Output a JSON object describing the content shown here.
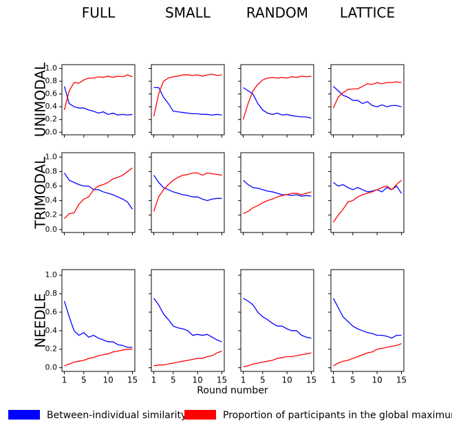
{
  "column_titles": [
    "FULL",
    "SMALL",
    "RANDOM",
    "LATTICE"
  ],
  "row_titles": [
    "UNIMODAL",
    "TRIMODAL",
    "NEEDLE"
  ],
  "xlabel": "Round number",
  "legend": [
    {
      "name": "Between-individual similarity",
      "color": "#0000ff"
    },
    {
      "name": "Proportion of participants in the global maximum",
      "color": "#ff0000"
    }
  ],
  "axes": {
    "x": [
      1,
      2,
      3,
      4,
      5,
      6,
      7,
      8,
      9,
      10,
      11,
      12,
      13,
      14,
      15
    ],
    "xlim": [
      0.5,
      15.5
    ],
    "xticks": [
      1,
      5,
      10,
      15
    ],
    "ylim": [
      -0.04,
      1.06
    ],
    "yticks": [
      {
        "value": 0,
        "label": "0.0"
      },
      {
        "value": 0.2,
        "label": "0.2"
      },
      {
        "value": 0.4,
        "label": "0.4"
      },
      {
        "value": 0.6,
        "label": "0.6"
      },
      {
        "value": 0.8,
        "label": "0.8"
      },
      {
        "value": 1,
        "label": "1.0"
      }
    ]
  },
  "chart_data": [
    {
      "type": "line",
      "series": [
        {
          "color": "#0000ff",
          "values": [
            0.72,
            0.45,
            0.4,
            0.38,
            0.38,
            0.35,
            0.33,
            0.3,
            0.32,
            0.28,
            0.3,
            0.27,
            0.28,
            0.27,
            0.28
          ]
        },
        {
          "color": "#ff0000",
          "values": [
            0.35,
            0.65,
            0.78,
            0.77,
            0.82,
            0.85,
            0.85,
            0.87,
            0.86,
            0.88,
            0.86,
            0.88,
            0.87,
            0.9,
            0.87
          ]
        }
      ]
    },
    {
      "type": "line",
      "series": [
        {
          "color": "#0000ff",
          "values": [
            0.7,
            0.7,
            0.55,
            0.45,
            0.33,
            0.32,
            0.31,
            0.3,
            0.29,
            0.29,
            0.28,
            0.28,
            0.27,
            0.28,
            0.27
          ]
        },
        {
          "color": "#ff0000",
          "values": [
            0.25,
            0.6,
            0.8,
            0.85,
            0.87,
            0.88,
            0.9,
            0.9,
            0.89,
            0.9,
            0.88,
            0.9,
            0.91,
            0.89,
            0.9
          ]
        }
      ]
    },
    {
      "type": "line",
      "series": [
        {
          "color": "#0000ff",
          "values": [
            0.7,
            0.65,
            0.6,
            0.45,
            0.35,
            0.3,
            0.28,
            0.3,
            0.27,
            0.28,
            0.26,
            0.25,
            0.24,
            0.24,
            0.22
          ]
        },
        {
          "color": "#ff0000",
          "values": [
            0.2,
            0.45,
            0.65,
            0.75,
            0.82,
            0.85,
            0.86,
            0.85,
            0.86,
            0.85,
            0.87,
            0.86,
            0.88,
            0.87,
            0.88
          ]
        }
      ]
    },
    {
      "type": "line",
      "series": [
        {
          "color": "#0000ff",
          "values": [
            0.72,
            0.65,
            0.58,
            0.55,
            0.5,
            0.5,
            0.45,
            0.48,
            0.42,
            0.4,
            0.43,
            0.4,
            0.42,
            0.42,
            0.4
          ]
        },
        {
          "color": "#ff0000",
          "values": [
            0.38,
            0.55,
            0.62,
            0.67,
            0.68,
            0.68,
            0.72,
            0.76,
            0.75,
            0.78,
            0.76,
            0.78,
            0.78,
            0.79,
            0.78
          ]
        }
      ]
    },
    {
      "type": "line",
      "series": [
        {
          "color": "#0000ff",
          "values": [
            0.78,
            0.68,
            0.65,
            0.62,
            0.6,
            0.6,
            0.55,
            0.55,
            0.52,
            0.5,
            0.48,
            0.45,
            0.42,
            0.38,
            0.28
          ]
        },
        {
          "color": "#ff0000",
          "values": [
            0.15,
            0.22,
            0.23,
            0.35,
            0.42,
            0.45,
            0.55,
            0.6,
            0.62,
            0.65,
            0.7,
            0.72,
            0.75,
            0.8,
            0.85
          ]
        }
      ]
    },
    {
      "type": "line",
      "series": [
        {
          "color": "#0000ff",
          "values": [
            0.75,
            0.65,
            0.58,
            0.55,
            0.52,
            0.5,
            0.48,
            0.47,
            0.45,
            0.45,
            0.42,
            0.4,
            0.42,
            0.43,
            0.43
          ]
        },
        {
          "color": "#ff0000",
          "values": [
            0.25,
            0.45,
            0.55,
            0.62,
            0.68,
            0.72,
            0.75,
            0.76,
            0.78,
            0.78,
            0.75,
            0.78,
            0.77,
            0.76,
            0.75
          ]
        }
      ]
    },
    {
      "type": "line",
      "series": [
        {
          "color": "#0000ff",
          "values": [
            0.68,
            0.62,
            0.58,
            0.57,
            0.55,
            0.53,
            0.52,
            0.5,
            0.48,
            0.48,
            0.47,
            0.48,
            0.46,
            0.47,
            0.46
          ]
        },
        {
          "color": "#ff0000",
          "values": [
            0.22,
            0.25,
            0.3,
            0.33,
            0.37,
            0.4,
            0.42,
            0.45,
            0.47,
            0.48,
            0.5,
            0.5,
            0.48,
            0.5,
            0.52
          ]
        }
      ]
    },
    {
      "type": "line",
      "series": [
        {
          "color": "#0000ff",
          "values": [
            0.65,
            0.6,
            0.62,
            0.58,
            0.55,
            0.58,
            0.55,
            0.52,
            0.53,
            0.55,
            0.52,
            0.58,
            0.55,
            0.6,
            0.5
          ]
        },
        {
          "color": "#ff0000",
          "values": [
            0.1,
            0.2,
            0.28,
            0.38,
            0.4,
            0.45,
            0.48,
            0.5,
            0.52,
            0.55,
            0.58,
            0.6,
            0.55,
            0.62,
            0.68
          ]
        }
      ]
    },
    {
      "type": "line",
      "series": [
        {
          "color": "#0000ff",
          "values": [
            0.72,
            0.55,
            0.4,
            0.35,
            0.38,
            0.33,
            0.35,
            0.32,
            0.3,
            0.28,
            0.28,
            0.25,
            0.24,
            0.22,
            0.22
          ]
        },
        {
          "color": "#ff0000",
          "values": [
            0.02,
            0.04,
            0.06,
            0.07,
            0.08,
            0.1,
            0.11,
            0.13,
            0.14,
            0.15,
            0.17,
            0.18,
            0.19,
            0.2,
            0.2
          ]
        }
      ]
    },
    {
      "type": "line",
      "series": [
        {
          "color": "#0000ff",
          "values": [
            0.75,
            0.68,
            0.58,
            0.52,
            0.45,
            0.43,
            0.42,
            0.4,
            0.35,
            0.36,
            0.35,
            0.36,
            0.33,
            0.3,
            0.28
          ]
        },
        {
          "color": "#ff0000",
          "values": [
            0.02,
            0.03,
            0.03,
            0.04,
            0.05,
            0.06,
            0.07,
            0.08,
            0.09,
            0.1,
            0.1,
            0.12,
            0.13,
            0.16,
            0.18
          ]
        }
      ]
    },
    {
      "type": "line",
      "series": [
        {
          "color": "#0000ff",
          "values": [
            0.75,
            0.72,
            0.68,
            0.6,
            0.55,
            0.52,
            0.48,
            0.45,
            0.45,
            0.42,
            0.4,
            0.4,
            0.35,
            0.33,
            0.32
          ]
        },
        {
          "color": "#ff0000",
          "values": [
            0.01,
            0.02,
            0.04,
            0.05,
            0.06,
            0.07,
            0.08,
            0.1,
            0.11,
            0.12,
            0.12,
            0.13,
            0.14,
            0.15,
            0.16
          ]
        }
      ]
    },
    {
      "type": "line",
      "series": [
        {
          "color": "#0000ff",
          "values": [
            0.75,
            0.65,
            0.55,
            0.5,
            0.45,
            0.42,
            0.4,
            0.38,
            0.37,
            0.35,
            0.35,
            0.34,
            0.32,
            0.35,
            0.35
          ]
        },
        {
          "color": "#ff0000",
          "values": [
            0.02,
            0.05,
            0.07,
            0.08,
            0.1,
            0.12,
            0.14,
            0.16,
            0.17,
            0.2,
            0.21,
            0.22,
            0.23,
            0.24,
            0.26
          ]
        }
      ]
    }
  ]
}
